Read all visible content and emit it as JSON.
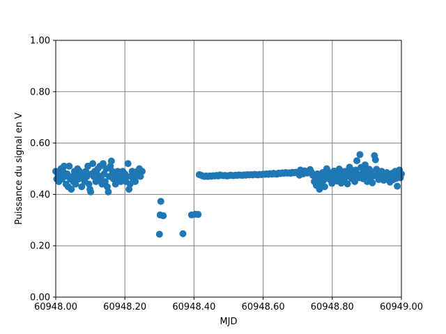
{
  "chart_data": {
    "type": "scatter",
    "title": "",
    "xlabel": "MJD",
    "ylabel": "Puissance du signal en V",
    "xlim": [
      60948.0,
      60949.0
    ],
    "ylim": [
      0.0,
      1.0
    ],
    "grid": true,
    "x_ticks": [
      60948.0,
      60948.2,
      60948.4,
      60948.6,
      60948.8,
      60949.0
    ],
    "x_tick_labels": [
      "60948.00",
      "60948.20",
      "60948.40",
      "60948.60",
      "60948.80",
      "60949.00"
    ],
    "y_ticks": [
      0.0,
      0.2,
      0.4,
      0.6,
      0.8,
      1.0
    ],
    "y_tick_labels": [
      "0.00",
      "0.20",
      "0.40",
      "0.60",
      "0.80",
      "1.00"
    ],
    "color": "#1f77b4",
    "series": [
      {
        "points": [
          [
            60948.0,
            0.49
          ],
          [
            60948.003,
            0.46
          ],
          [
            60948.006,
            0.48
          ],
          [
            60948.009,
            0.45
          ],
          [
            60948.012,
            0.47
          ],
          [
            60948.015,
            0.5
          ],
          [
            60948.018,
            0.46
          ],
          [
            60948.021,
            0.49
          ],
          [
            60948.024,
            0.51
          ],
          [
            60948.027,
            0.47
          ],
          [
            60948.03,
            0.44
          ],
          [
            60948.033,
            0.48
          ],
          [
            60948.036,
            0.43
          ],
          [
            60948.039,
            0.51
          ],
          [
            60948.042,
            0.46
          ],
          [
            60948.045,
            0.42
          ],
          [
            60948.048,
            0.47
          ],
          [
            60948.051,
            0.45
          ],
          [
            60948.054,
            0.49
          ],
          [
            60948.057,
            0.44
          ],
          [
            60948.06,
            0.48
          ],
          [
            60948.063,
            0.5
          ],
          [
            60948.066,
            0.46
          ],
          [
            60948.069,
            0.49
          ],
          [
            60948.072,
            0.47
          ],
          [
            60948.075,
            0.43
          ],
          [
            60948.078,
            0.48
          ],
          [
            60948.081,
            0.46
          ],
          [
            60948.084,
            0.45
          ],
          [
            60948.087,
            0.49
          ],
          [
            60948.09,
            0.47
          ],
          [
            60948.093,
            0.51
          ],
          [
            60948.096,
            0.44
          ],
          [
            60948.099,
            0.42
          ],
          [
            60948.101,
            0.41
          ],
          [
            60948.104,
            0.48
          ],
          [
            60948.107,
            0.52
          ],
          [
            60948.11,
            0.47
          ],
          [
            60948.113,
            0.49
          ],
          [
            60948.116,
            0.45
          ],
          [
            60948.119,
            0.48
          ],
          [
            60948.122,
            0.5
          ],
          [
            60948.125,
            0.46
          ],
          [
            60948.128,
            0.51
          ],
          [
            60948.131,
            0.47
          ],
          [
            60948.134,
            0.44
          ],
          [
            60948.137,
            0.52
          ],
          [
            60948.14,
            0.48
          ],
          [
            60948.143,
            0.45
          ],
          [
            60948.146,
            0.5
          ],
          [
            60948.149,
            0.43
          ],
          [
            60948.152,
            0.41
          ],
          [
            60948.155,
            0.47
          ],
          [
            60948.158,
            0.51
          ],
          [
            60948.161,
            0.53
          ],
          [
            60948.164,
            0.49
          ],
          [
            60948.167,
            0.46
          ],
          [
            60948.17,
            0.48
          ],
          [
            60948.173,
            0.44
          ],
          [
            60948.176,
            0.47
          ],
          [
            60948.179,
            0.49
          ],
          [
            60948.182,
            0.46
          ],
          [
            60948.185,
            0.48
          ],
          [
            60948.188,
            0.45
          ],
          [
            60948.191,
            0.47
          ],
          [
            60948.194,
            0.49
          ],
          [
            60948.197,
            0.46
          ],
          [
            60948.2,
            0.48
          ],
          [
            60948.203,
            0.45
          ],
          [
            60948.206,
            0.47
          ],
          [
            60948.209,
            0.52
          ],
          [
            60948.212,
            0.42
          ],
          [
            60948.215,
            0.44
          ],
          [
            60948.218,
            0.47
          ],
          [
            60948.221,
            0.49
          ],
          [
            60948.224,
            0.46
          ],
          [
            60948.227,
            0.48
          ],
          [
            60948.23,
            0.45
          ],
          [
            60948.233,
            0.47
          ],
          [
            60948.236,
            0.49
          ],
          [
            60948.239,
            0.48
          ],
          [
            60948.242,
            0.5
          ],
          [
            60948.245,
            0.47
          ],
          [
            60948.25,
            0.49
          ],
          [
            60948.3,
            0.245
          ],
          [
            60948.302,
            0.32
          ],
          [
            60948.304,
            0.373
          ],
          [
            60948.311,
            0.317
          ],
          [
            60948.368,
            0.247
          ],
          [
            60948.393,
            0.32
          ],
          [
            60948.404,
            0.323
          ],
          [
            60948.412,
            0.322
          ],
          [
            60948.415,
            0.477
          ],
          [
            60948.42,
            0.475
          ],
          [
            60948.425,
            0.472
          ],
          [
            60948.43,
            0.47
          ],
          [
            60948.435,
            0.472
          ],
          [
            60948.44,
            0.47
          ],
          [
            60948.445,
            0.472
          ],
          [
            60948.45,
            0.471
          ],
          [
            60948.455,
            0.473
          ],
          [
            60948.46,
            0.472
          ],
          [
            60948.465,
            0.474
          ],
          [
            60948.47,
            0.472
          ],
          [
            60948.475,
            0.476
          ],
          [
            60948.48,
            0.474
          ],
          [
            60948.485,
            0.473
          ],
          [
            60948.49,
            0.474
          ],
          [
            60948.495,
            0.472
          ],
          [
            60948.5,
            0.473
          ],
          [
            60948.505,
            0.475
          ],
          [
            60948.51,
            0.474
          ],
          [
            60948.515,
            0.473
          ],
          [
            60948.52,
            0.475
          ],
          [
            60948.525,
            0.474
          ],
          [
            60948.53,
            0.476
          ],
          [
            60948.535,
            0.475
          ],
          [
            60948.54,
            0.474
          ],
          [
            60948.545,
            0.476
          ],
          [
            60948.55,
            0.475
          ],
          [
            60948.555,
            0.477
          ],
          [
            60948.56,
            0.476
          ],
          [
            60948.565,
            0.477
          ],
          [
            60948.57,
            0.476
          ],
          [
            60948.575,
            0.478
          ],
          [
            60948.58,
            0.477
          ],
          [
            60948.585,
            0.476
          ],
          [
            60948.59,
            0.478
          ],
          [
            60948.595,
            0.477
          ],
          [
            60948.6,
            0.479
          ],
          [
            60948.605,
            0.478
          ],
          [
            60948.61,
            0.48
          ],
          [
            60948.615,
            0.478
          ],
          [
            60948.62,
            0.481
          ],
          [
            60948.625,
            0.479
          ],
          [
            60948.63,
            0.482
          ],
          [
            60948.635,
            0.48
          ],
          [
            60948.64,
            0.479
          ],
          [
            60948.645,
            0.483
          ],
          [
            60948.65,
            0.481
          ],
          [
            60948.655,
            0.484
          ],
          [
            60948.66,
            0.482
          ],
          [
            60948.665,
            0.485
          ],
          [
            60948.67,
            0.483
          ],
          [
            60948.675,
            0.484
          ],
          [
            60948.68,
            0.482
          ],
          [
            60948.685,
            0.486
          ],
          [
            60948.69,
            0.484
          ],
          [
            60948.695,
            0.486
          ],
          [
            60948.7,
            0.483
          ],
          [
            60948.705,
            0.475
          ],
          [
            60948.708,
            0.495
          ],
          [
            60948.712,
            0.49
          ],
          [
            60948.716,
            0.48
          ],
          [
            60948.72,
            0.492
          ],
          [
            60948.724,
            0.487
          ],
          [
            60948.728,
            0.483
          ],
          [
            60948.732,
            0.49
          ],
          [
            60948.736,
            0.497
          ],
          [
            60948.74,
            0.486
          ],
          [
            60948.744,
            0.474
          ],
          [
            60948.748,
            0.45
          ],
          [
            60948.751,
            0.47
          ],
          [
            60948.754,
            0.435
          ],
          [
            60948.757,
            0.48
          ],
          [
            60948.76,
            0.455
          ],
          [
            60948.763,
            0.42
          ],
          [
            60948.766,
            0.44
          ],
          [
            60948.769,
            0.47
          ],
          [
            60948.772,
            0.485
          ],
          [
            60948.775,
            0.455
          ],
          [
            60948.778,
            0.43
          ],
          [
            60948.781,
            0.465
          ],
          [
            60948.784,
            0.5
          ],
          [
            60948.787,
            0.49
          ],
          [
            60948.79,
            0.473
          ],
          [
            60948.793,
            0.458
          ],
          [
            60948.796,
            0.48
          ],
          [
            60948.799,
            0.443
          ],
          [
            60948.802,
            0.47
          ],
          [
            60948.805,
            0.491
          ],
          [
            60948.808,
            0.462
          ],
          [
            60948.811,
            0.481
          ],
          [
            60948.814,
            0.452
          ],
          [
            60948.817,
            0.475
          ],
          [
            60948.82,
            0.499
          ],
          [
            60948.823,
            0.46
          ],
          [
            60948.826,
            0.444
          ],
          [
            60948.829,
            0.488
          ],
          [
            60948.832,
            0.472
          ],
          [
            60948.835,
            0.455
          ],
          [
            60948.838,
            0.49
          ],
          [
            60948.841,
            0.47
          ],
          [
            60948.844,
            0.441
          ],
          [
            60948.847,
            0.475
          ],
          [
            60948.85,
            0.506
          ],
          [
            60948.853,
            0.487
          ],
          [
            60948.856,
            0.462
          ],
          [
            60948.859,
            0.493
          ],
          [
            60948.862,
            0.47
          ],
          [
            60948.865,
            0.45
          ],
          [
            60948.868,
            0.495
          ],
          [
            60948.871,
            0.531
          ],
          [
            60948.874,
            0.478
          ],
          [
            60948.877,
            0.465
          ],
          [
            60948.88,
            0.555
          ],
          [
            60948.883,
            0.505
          ],
          [
            60948.886,
            0.48
          ],
          [
            60948.889,
            0.461
          ],
          [
            60948.892,
            0.49
          ],
          [
            60948.895,
            0.515
          ],
          [
            60948.898,
            0.47
          ],
          [
            60948.901,
            0.45
          ],
          [
            60948.904,
            0.478
          ],
          [
            60948.907,
            0.498
          ],
          [
            60948.91,
            0.465
          ],
          [
            60948.913,
            0.488
          ],
          [
            60948.916,
            0.445
          ],
          [
            60948.919,
            0.472
          ],
          [
            60948.922,
            0.551
          ],
          [
            60948.925,
            0.535
          ],
          [
            60948.928,
            0.498
          ],
          [
            60948.931,
            0.475
          ],
          [
            60948.934,
            0.458
          ],
          [
            60948.937,
            0.482
          ],
          [
            60948.94,
            0.465
          ],
          [
            60948.943,
            0.49
          ],
          [
            60948.946,
            0.47
          ],
          [
            60948.949,
            0.455
          ],
          [
            60948.952,
            0.478
          ],
          [
            60948.955,
            0.468
          ],
          [
            60948.958,
            0.485
          ],
          [
            60948.961,
            0.46
          ],
          [
            60948.964,
            0.472
          ],
          [
            60948.967,
            0.448
          ],
          [
            60948.97,
            0.47
          ],
          [
            60948.973,
            0.482
          ],
          [
            60948.976,
            0.457
          ],
          [
            60948.979,
            0.47
          ],
          [
            60948.982,
            0.49
          ],
          [
            60948.985,
            0.462
          ],
          [
            60948.988,
            0.432
          ],
          [
            60948.991,
            0.478
          ],
          [
            60948.994,
            0.495
          ],
          [
            60948.997,
            0.465
          ],
          [
            60949.0,
            0.48
          ]
        ]
      }
    ]
  }
}
